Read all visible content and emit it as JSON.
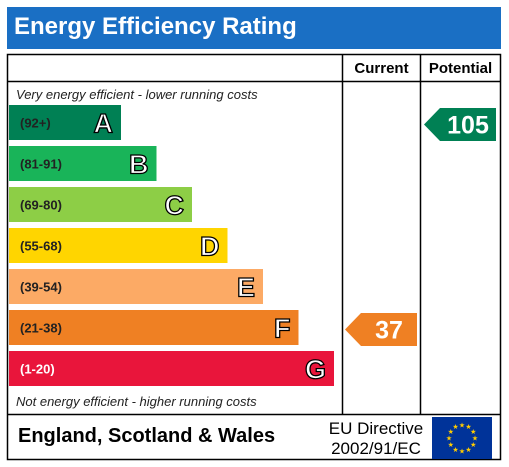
{
  "title": "Energy Efficiency Rating",
  "columns": {
    "current": "Current",
    "potential": "Potential"
  },
  "top_note": "Very energy efficient - lower running costs",
  "bottom_note": "Not energy efficient - higher running costs",
  "footer": {
    "region": "England, Scotland & Wales",
    "directive_line1": "EU Directive",
    "directive_line2": "2002/91/EC"
  },
  "flag_icon": "eu-flag-icon",
  "chart_data": {
    "type": "bar",
    "title": "Energy Efficiency Rating",
    "bands": [
      {
        "letter": "A",
        "range": "(92+)",
        "color": "#008054"
      },
      {
        "letter": "B",
        "range": "(81-91)",
        "color": "#19b459"
      },
      {
        "letter": "C",
        "range": "(69-80)",
        "color": "#8dce46"
      },
      {
        "letter": "D",
        "range": "(55-68)",
        "color": "#ffd500"
      },
      {
        "letter": "E",
        "range": "(39-54)",
        "color": "#fcaa65"
      },
      {
        "letter": "F",
        "range": "(21-38)",
        "color": "#ef8023"
      },
      {
        "letter": "G",
        "range": "(1-20)",
        "color": "#e9153b"
      }
    ],
    "current": {
      "value": 37,
      "label": "37",
      "band": "F",
      "color": "#ef8023"
    },
    "potential": {
      "value": 105,
      "label": "105",
      "band": "A",
      "color": "#008054"
    }
  }
}
